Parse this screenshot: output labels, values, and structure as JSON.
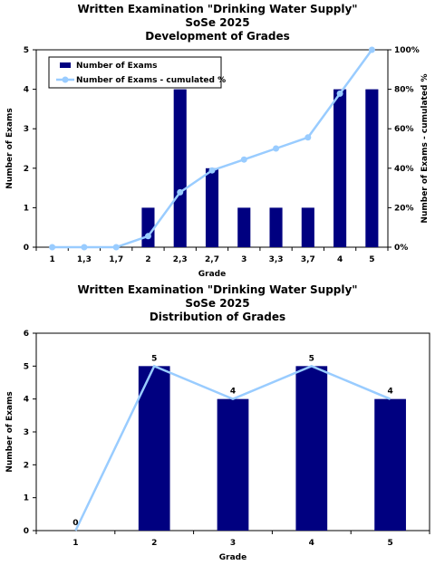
{
  "chart_data": [
    {
      "type": "bar",
      "title_lines": [
        "Written Examination \"Drinking Water Supply\"",
        "SoSe 2025",
        "Development of Grades"
      ],
      "xlabel": "Grade",
      "ylabel": "Number of Exams",
      "y2label": "Number of Exams - cumulated %",
      "categories": [
        "1",
        "1,3",
        "1,7",
        "2",
        "2,3",
        "2,7",
        "3",
        "3,3",
        "3,7",
        "4",
        "5"
      ],
      "ylim": [
        0,
        5
      ],
      "yticks": [
        "0",
        "1",
        "2",
        "3",
        "4",
        "5"
      ],
      "y2lim": [
        0,
        100
      ],
      "y2ticks": [
        "0%",
        "20%",
        "40%",
        "60%",
        "80%",
        "100%"
      ],
      "grid": false,
      "legend_position": "top-left",
      "series": [
        {
          "name": "Number of Exams",
          "kind": "bar",
          "axis": "left",
          "color": "#000080",
          "values": [
            0,
            0,
            0,
            1,
            4,
            2,
            1,
            1,
            1,
            4,
            4
          ]
        },
        {
          "name": "Number of Exams - cumulated %",
          "kind": "line",
          "axis": "right",
          "color": "#99ccff",
          "values": [
            0,
            0,
            0,
            5.6,
            27.8,
            38.9,
            44.4,
            50.0,
            55.6,
            77.8,
            100
          ]
        }
      ]
    },
    {
      "type": "bar",
      "title_lines": [
        "Written Examination \"Drinking Water Supply\"",
        "SoSe 2025",
        "Distribution of Grades"
      ],
      "xlabel": "Grade",
      "ylabel": "Number of Exams",
      "categories": [
        "1",
        "2",
        "3",
        "4",
        "5"
      ],
      "ylim": [
        0,
        6
      ],
      "yticks": [
        "0",
        "1",
        "2",
        "3",
        "4",
        "5",
        "6"
      ],
      "grid": false,
      "series": [
        {
          "kind": "bar",
          "color": "#000080",
          "values": [
            0,
            5,
            4,
            5,
            4
          ]
        },
        {
          "kind": "line",
          "color": "#99ccff",
          "values": [
            0,
            5,
            4,
            5,
            4
          ]
        }
      ],
      "data_labels": [
        "0",
        "5",
        "4",
        "5",
        "4"
      ]
    }
  ]
}
